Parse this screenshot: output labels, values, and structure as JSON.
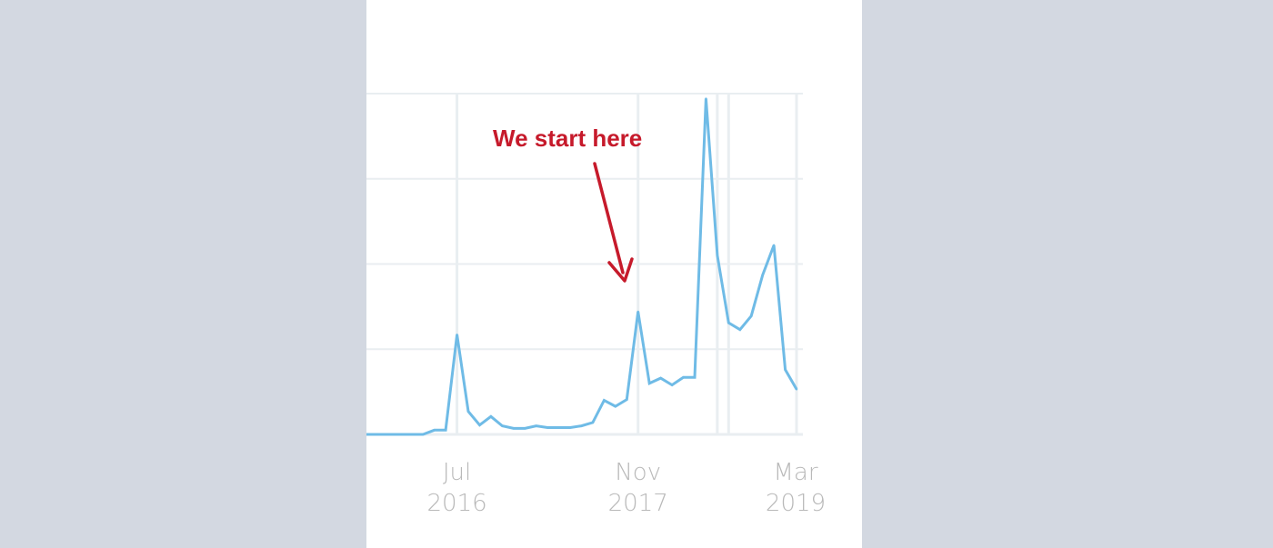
{
  "chart_data": {
    "type": "line",
    "series": [
      {
        "values": [
          {
            "x": "2015-11",
            "y": 0.0
          },
          {
            "x": "2015-12",
            "y": 0.0
          },
          {
            "x": "2016-01",
            "y": 0.0
          },
          {
            "x": "2016-02",
            "y": 0.0
          },
          {
            "x": "2016-03",
            "y": 0.0
          },
          {
            "x": "2016-04",
            "y": 0.0
          },
          {
            "x": "2016-05",
            "y": 0.5
          },
          {
            "x": "2016-06",
            "y": 0.5
          },
          {
            "x": "2016-07",
            "y": 11.7
          },
          {
            "x": "2016-08",
            "y": 2.7
          },
          {
            "x": "2016-09",
            "y": 1.1
          },
          {
            "x": "2016-10",
            "y": 2.1
          },
          {
            "x": "2016-11",
            "y": 1.0
          },
          {
            "x": "2016-12",
            "y": 0.7
          },
          {
            "x": "2017-01",
            "y": 0.7
          },
          {
            "x": "2017-02",
            "y": 1.0
          },
          {
            "x": "2017-03",
            "y": 0.8
          },
          {
            "x": "2017-04",
            "y": 0.8
          },
          {
            "x": "2017-05",
            "y": 0.8
          },
          {
            "x": "2017-06",
            "y": 1.0
          },
          {
            "x": "2017-07",
            "y": 1.4
          },
          {
            "x": "2017-08",
            "y": 4.0
          },
          {
            "x": "2017-09",
            "y": 3.3
          },
          {
            "x": "2017-10",
            "y": 4.1
          },
          {
            "x": "2017-11",
            "y": 14.4
          },
          {
            "x": "2017-12",
            "y": 6.0
          },
          {
            "x": "2018-01",
            "y": 6.6
          },
          {
            "x": "2018-02",
            "y": 5.8
          },
          {
            "x": "2018-03",
            "y": 6.7
          },
          {
            "x": "2018-04",
            "y": 6.7
          },
          {
            "x": "2018-05",
            "y": 39.4
          },
          {
            "x": "2018-06",
            "y": 21.0
          },
          {
            "x": "2018-07",
            "y": 13.1
          },
          {
            "x": "2018-08",
            "y": 12.3
          },
          {
            "x": "2018-09",
            "y": 13.9
          },
          {
            "x": "2018-10",
            "y": 18.7
          },
          {
            "x": "2018-11",
            "y": 22.2
          },
          {
            "x": "2018-12",
            "y": 7.6
          },
          {
            "x": "2019-01",
            "y": 5.3
          }
        ]
      }
    ],
    "x_ticks": [
      {
        "x": "2016-07",
        "month": "Jul",
        "year": "2016"
      },
      {
        "x": "2017-11",
        "month": "Nov",
        "year": "2017"
      },
      {
        "x": "2019-03",
        "month": "Mar",
        "year": "2019"
      }
    ],
    "xlim": [
      "2015-11",
      "2019-01"
    ],
    "ylim": [
      0,
      40
    ],
    "yticks": [
      0,
      10,
      20,
      30,
      40
    ],
    "grid": true,
    "vertical_rules": [
      "2016-07",
      "2017-11",
      "2018-06",
      "2018-07",
      "2019-01"
    ],
    "line_color": "#6fbbe6",
    "grid_color": "#e9eef1",
    "annotation": {
      "text": "We start here",
      "points_to": "2017-11",
      "color": "#c61a2b"
    }
  },
  "colors": {
    "background": "#d3d8e1",
    "panel": "#ffffff",
    "tick_label": "#b9b9b9"
  }
}
